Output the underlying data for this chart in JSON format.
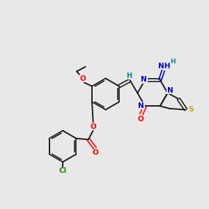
{
  "bg_color": "#e8e8e8",
  "bond_color": "#1a1a1a",
  "o_color": "#ff0000",
  "n_color": "#0000cc",
  "s_color": "#ccaa00",
  "cl_color": "#228800",
  "h_color": "#008888",
  "figsize": [
    3.0,
    3.0
  ],
  "dpi": 100,
  "xlim": [
    0,
    10
  ],
  "ylim": [
    0,
    10
  ]
}
